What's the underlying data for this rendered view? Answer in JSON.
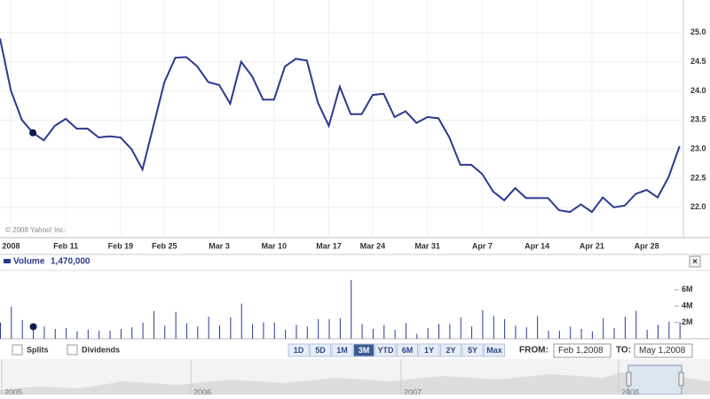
{
  "chart_data": [
    {
      "type": "line",
      "categories": [
        null,
        "2008",
        null,
        null,
        null,
        null,
        "Feb 11",
        null,
        null,
        null,
        null,
        "Feb 19",
        null,
        null,
        null,
        "Feb 25",
        null,
        null,
        null,
        null,
        "Mar 3",
        null,
        null,
        null,
        null,
        "Mar 10",
        null,
        null,
        null,
        null,
        "Mar 17",
        null,
        null,
        null,
        "Mar 24",
        null,
        null,
        null,
        null,
        "Mar 31",
        null,
        null,
        null,
        null,
        "Apr 7",
        null,
        null,
        null,
        null,
        "Apr 14",
        null,
        null,
        null,
        null,
        "Apr 21",
        null,
        null,
        null,
        null,
        "Apr 28",
        null,
        null,
        null
      ],
      "series": [
        {
          "color": "#2b3990",
          "values": [
            24.9,
            24.0,
            23.5,
            23.28,
            23.15,
            23.4,
            23.52,
            23.35,
            23.35,
            23.2,
            23.22,
            23.2,
            23.0,
            22.65,
            23.4,
            24.15,
            24.57,
            24.58,
            24.42,
            24.15,
            24.1,
            23.78,
            24.5,
            24.25,
            23.85,
            23.85,
            24.42,
            24.55,
            24.52,
            23.8,
            23.4,
            24.07,
            23.6,
            23.6,
            23.93,
            23.95,
            23.55,
            23.65,
            23.45,
            23.55,
            23.53,
            23.2,
            22.73,
            22.73,
            22.57,
            22.27,
            22.12,
            22.33,
            22.16,
            22.16,
            22.16,
            21.95,
            21.92,
            22.05,
            21.92,
            22.17,
            22.0,
            22.03,
            22.23,
            22.3,
            22.17,
            22.52,
            23.05
          ]
        }
      ],
      "ylim": [
        21.48,
        25.56
      ],
      "yticks": [
        {
          "value": 22,
          "label": "22.0"
        },
        22.5,
        {
          "value": 23,
          "label": "23.0"
        },
        23.5,
        {
          "value": 24,
          "label": "24.0"
        },
        24.5,
        {
          "value": 25,
          "label": "25.0"
        }
      ],
      "grid": true,
      "annotation": "© 2008 Yahoo! Inc."
    },
    {
      "type": "bar",
      "series": [
        {
          "name": "Volume",
          "color": "#2b3990",
          "values": [
            2000000,
            3900000,
            2300000,
            1470000,
            1500000,
            1200000,
            1300000,
            900000,
            1100000,
            1000000,
            1000000,
            1200000,
            1400000,
            2000000,
            3400000,
            1600000,
            3300000,
            1900000,
            1500000,
            2700000,
            1600000,
            2600000,
            4300000,
            1800000,
            2000000,
            2000000,
            1100000,
            1700000,
            1500000,
            2400000,
            2400000,
            2500000,
            7200000,
            1800000,
            1200000,
            1700000,
            1100000,
            1900000,
            600000,
            1300000,
            1800000,
            1800000,
            2600000,
            1500000,
            3500000,
            2800000,
            2400000,
            1600000,
            1400000,
            2800000,
            1000000,
            1000000,
            1500000,
            1200000,
            900000,
            2500000,
            1300000,
            2700000,
            3400000,
            1100000,
            1700000,
            2100000,
            2000000
          ],
          "value_labels": [
            null,
            null,
            null,
            "1,470,000",
            null,
            null,
            null,
            null,
            null,
            null,
            null,
            null,
            null,
            null,
            null,
            null,
            null,
            null,
            null,
            null,
            null,
            null,
            null,
            null,
            null,
            null,
            null,
            null,
            null,
            null,
            null,
            null,
            null,
            null,
            null,
            null,
            null,
            null,
            null,
            null,
            null,
            null,
            null,
            null,
            null,
            null,
            null,
            null,
            null,
            null,
            null,
            null,
            null,
            null,
            null,
            null,
            null,
            null,
            null,
            null,
            null,
            null,
            null
          ]
        }
      ],
      "ylim": [
        0,
        8370000
      ],
      "yticks": [
        {
          "value": 2000000,
          "label": "2M"
        },
        {
          "value": 4000000,
          "label": "4M"
        },
        {
          "value": 6000000,
          "label": "6M"
        }
      ]
    }
  ],
  "controls": {
    "close": "×",
    "checkboxes": [
      "Splits",
      "Dividends"
    ],
    "ranges": [
      "1D",
      "5D",
      "1M",
      "3M",
      "YTD",
      "6M",
      "1Y",
      "2Y",
      "5Y",
      "Max"
    ],
    "selected": "3M",
    "from_label": "FROM:",
    "from_value": "Feb 1,2008",
    "to_label": "TO:",
    "to_value": "May 1,2008"
  },
  "navigator": {
    "years": [
      "2005",
      "2006",
      "2007",
      "2008"
    ]
  }
}
